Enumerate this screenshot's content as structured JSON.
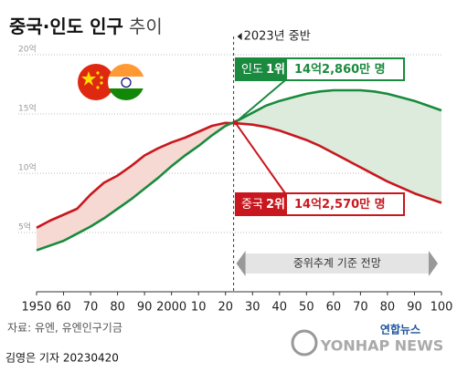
{
  "chart_data": {
    "type": "line",
    "title": "중국·인도 인구",
    "title_suffix": "추이",
    "x": [
      1950,
      1955,
      1960,
      1965,
      1970,
      1975,
      1980,
      1985,
      1990,
      1995,
      2000,
      2005,
      2010,
      2015,
      2020,
      2025,
      2030,
      2035,
      2040,
      2045,
      2050,
      2055,
      2060,
      2065,
      2070,
      2075,
      2080,
      2085,
      2090,
      2095,
      2100
    ],
    "series": [
      {
        "name": "중국",
        "rank": "2위",
        "color": "#c8171e",
        "fill": "#f6d9d2",
        "values": [
          5.4,
          6.0,
          6.5,
          7.0,
          8.2,
          9.2,
          9.8,
          10.6,
          11.5,
          12.1,
          12.6,
          13.0,
          13.5,
          14.0,
          14.25,
          14.2,
          14.1,
          13.9,
          13.6,
          13.2,
          12.8,
          12.3,
          11.7,
          11.1,
          10.5,
          9.9,
          9.3,
          8.8,
          8.3,
          7.9,
          7.5
        ],
        "current_value": 14.257,
        "current_label": "14억2,570만 명"
      },
      {
        "name": "인도",
        "rank": "1위",
        "color": "#1a8a3e",
        "fill": "#dcebdc",
        "values": [
          3.5,
          3.9,
          4.3,
          4.9,
          5.5,
          6.2,
          7.0,
          7.8,
          8.7,
          9.6,
          10.6,
          11.5,
          12.3,
          13.2,
          14.0,
          14.5,
          15.1,
          15.7,
          16.1,
          16.4,
          16.7,
          16.9,
          17.0,
          17.0,
          17.0,
          16.9,
          16.7,
          16.4,
          16.1,
          15.7,
          15.3
        ],
        "current_value": 14.286,
        "current_label": "14억2,860만 명"
      }
    ],
    "xlim": [
      1950,
      2100
    ],
    "xticks": [
      {
        "value": 1950,
        "label": "1950"
      },
      {
        "value": 1960,
        "label": "60"
      },
      {
        "value": 1970,
        "label": "70"
      },
      {
        "value": 1980,
        "label": "80"
      },
      {
        "value": 1990,
        "label": "90"
      },
      2000,
      {
        "value": 2010,
        "label": "10"
      },
      {
        "value": 2020,
        "label": "20"
      },
      {
        "value": 2030,
        "label": "30"
      },
      {
        "value": 2040,
        "label": "40"
      },
      {
        "value": 2050,
        "label": "50"
      },
      {
        "value": 2060,
        "label": "60"
      },
      {
        "value": 2070,
        "label": "70"
      },
      {
        "value": 2080,
        "label": "80"
      },
      {
        "value": 2090,
        "label": "90"
      },
      {
        "value": 2100,
        "label": "100"
      }
    ],
    "ylim": [
      0,
      20
    ],
    "yticks": [
      {
        "value": 5,
        "label": "5억"
      },
      {
        "value": 10,
        "label": "10억"
      },
      {
        "value": 15,
        "label": "15억"
      },
      {
        "value": 20,
        "label": "20억"
      }
    ],
    "grid": true,
    "marker_line": {
      "x": 2023,
      "label": "2023년 중반"
    },
    "projection_label": "중위추계 기준 전망",
    "source": "자료: 유엔, 유엔인구기금",
    "credit": "김영은 기자  20230420",
    "logo": "연합뉴스",
    "logo_sub": "YONHAP NEWS"
  }
}
